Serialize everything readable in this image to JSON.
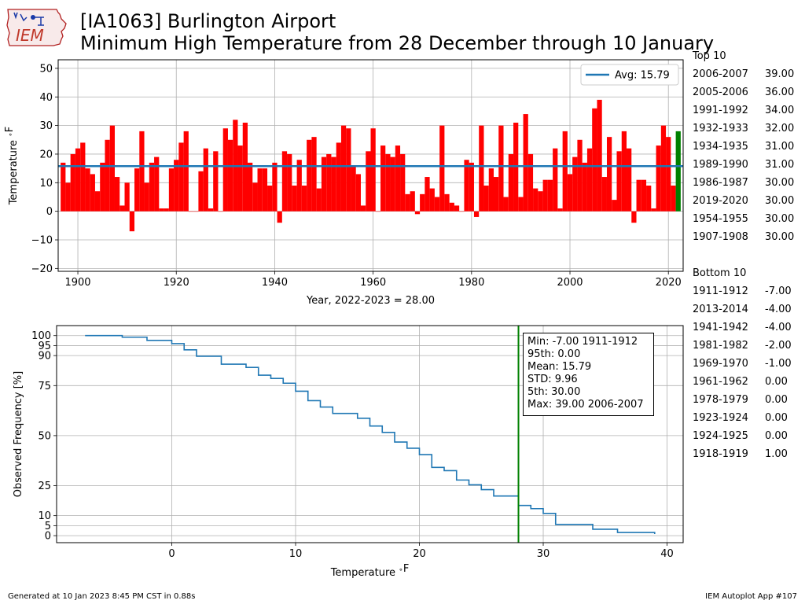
{
  "header": {
    "title_line1": "[IA1063] Burlington Airport",
    "title_line2": "Minimum High Temperature from 28 December through 10 January",
    "logo_text": "IEM"
  },
  "top10": {
    "heading": "Top 10",
    "rows": [
      {
        "season": "2006-2007",
        "value": "39.00"
      },
      {
        "season": "2005-2006",
        "value": "36.00"
      },
      {
        "season": "1991-1992",
        "value": "34.00"
      },
      {
        "season": "1932-1933",
        "value": "32.00"
      },
      {
        "season": "1934-1935",
        "value": "31.00"
      },
      {
        "season": "1989-1990",
        "value": "31.00"
      },
      {
        "season": "1986-1987",
        "value": "30.00"
      },
      {
        "season": "2019-2020",
        "value": "30.00"
      },
      {
        "season": "1954-1955",
        "value": "30.00"
      },
      {
        "season": "1907-1908",
        "value": "30.00"
      }
    ]
  },
  "bottom10": {
    "heading": "Bottom 10",
    "rows": [
      {
        "season": "1911-1912",
        "value": "-7.00"
      },
      {
        "season": "2013-2014",
        "value": "-4.00"
      },
      {
        "season": "1941-1942",
        "value": "-4.00"
      },
      {
        "season": "1981-1982",
        "value": "-2.00"
      },
      {
        "season": "1969-1970",
        "value": "-1.00"
      },
      {
        "season": "1961-1962",
        "value": "0.00"
      },
      {
        "season": "1978-1979",
        "value": "0.00"
      },
      {
        "season": "1923-1924",
        "value": "0.00"
      },
      {
        "season": "1924-1925",
        "value": "0.00"
      },
      {
        "season": "1918-1919",
        "value": "1.00"
      }
    ]
  },
  "footer": {
    "left": "Generated at 10 Jan 2023 8:45 PM CST in 0.88s",
    "right": "IEM Autoplot App #107"
  },
  "chart_data": [
    {
      "type": "bar",
      "xlabel": "Year, 2022-2023 = 28.00",
      "ylabel": "Temperature $^\\circ$F",
      "xlim": [
        1896,
        2023
      ],
      "ylim": [
        -21,
        53
      ],
      "xticks": [
        1900,
        1920,
        1940,
        1960,
        1980,
        2000,
        2020
      ],
      "yticks": [
        -20,
        -10,
        0,
        10,
        20,
        30,
        40,
        50
      ],
      "grid": true,
      "colors": {
        "bars": "#ff0000",
        "current": "#008000",
        "avg_line": "#1f77b4"
      },
      "legend": {
        "label": "Avg: 15.79",
        "placement": "top-right"
      },
      "average": 15.79,
      "x_start": 1897,
      "years": [
        1897,
        1898,
        1899,
        1900,
        1901,
        1902,
        1903,
        1904,
        1905,
        1906,
        1907,
        1908,
        1909,
        1910,
        1911,
        1912,
        1913,
        1914,
        1915,
        1916,
        1917,
        1918,
        1919,
        1920,
        1921,
        1922,
        1923,
        1924,
        1925,
        1926,
        1927,
        1928,
        1929,
        1930,
        1931,
        1932,
        1933,
        1934,
        1935,
        1936,
        1937,
        1938,
        1939,
        1940,
        1941,
        1942,
        1943,
        1944,
        1945,
        1946,
        1947,
        1948,
        1949,
        1950,
        1951,
        1952,
        1953,
        1954,
        1955,
        1956,
        1957,
        1958,
        1959,
        1960,
        1961,
        1962,
        1963,
        1964,
        1965,
        1966,
        1967,
        1968,
        1969,
        1970,
        1971,
        1972,
        1973,
        1974,
        1975,
        1976,
        1977,
        1978,
        1979,
        1980,
        1981,
        1982,
        1983,
        1984,
        1985,
        1986,
        1987,
        1988,
        1989,
        1990,
        1991,
        1992,
        1993,
        1994,
        1995,
        1996,
        1997,
        1998,
        1999,
        2000,
        2001,
        2002,
        2003,
        2004,
        2005,
        2006,
        2007,
        2008,
        2009,
        2010,
        2011,
        2012,
        2013,
        2014,
        2015,
        2016,
        2017,
        2018,
        2019,
        2020,
        2021,
        2022
      ],
      "values": [
        17,
        10,
        20,
        22,
        24,
        15,
        13,
        7,
        17,
        25,
        30,
        12,
        2,
        10,
        -7,
        15,
        28,
        10,
        17,
        19,
        1,
        1,
        15,
        18,
        24,
        28,
        0,
        0,
        14,
        22,
        1,
        21,
        0,
        29,
        25,
        32,
        23,
        31,
        17,
        10,
        15,
        15,
        9,
        17,
        -4,
        21,
        20,
        9,
        18,
        9,
        25,
        26,
        8,
        19,
        20,
        19,
        24,
        30,
        29,
        16,
        13,
        2,
        21,
        29,
        0,
        23,
        20,
        19,
        23,
        20,
        6,
        7,
        -1,
        6,
        12,
        8,
        5,
        30,
        6,
        3,
        2,
        0,
        18,
        17,
        -2,
        30,
        9,
        15,
        12,
        30,
        5,
        20,
        31,
        5,
        34,
        20,
        8,
        7,
        11,
        11,
        22,
        1,
        28,
        13,
        19,
        25,
        17,
        22,
        36,
        39,
        12,
        26,
        4,
        21,
        28,
        22,
        -4,
        11,
        11,
        9,
        1,
        23,
        30,
        26,
        9,
        28
      ]
    },
    {
      "type": "line",
      "xlabel": "Temperature $^\\circ$F",
      "ylabel": "Observed Frequency [%]",
      "xlim": [
        -9.3,
        41.3
      ],
      "ylim": [
        -3.5,
        105
      ],
      "xticks": [
        0,
        10,
        20,
        30,
        40
      ],
      "yticks": [
        0,
        5,
        10,
        25,
        50,
        75,
        90,
        95,
        100
      ],
      "grid": true,
      "colors": {
        "line": "#1f77b4",
        "current": "#008000"
      },
      "current_value": 28,
      "x": [
        -7,
        -4,
        -2,
        0,
        1,
        2,
        4,
        6,
        7,
        8,
        9,
        10,
        11,
        12,
        13,
        15,
        16,
        17,
        18,
        19,
        20,
        21,
        22,
        23,
        24,
        25,
        26,
        28,
        29,
        30,
        31,
        34,
        36,
        39
      ],
      "y": [
        100,
        99.2,
        97.6,
        96,
        92.9,
        89.7,
        85.7,
        84.1,
        80.2,
        78.6,
        76.2,
        72.2,
        67.5,
        64.3,
        61.1,
        58.7,
        54.8,
        51.6,
        46.8,
        43.7,
        40.5,
        34.1,
        32.5,
        27.8,
        25.4,
        23.0,
        19.8,
        15.1,
        13.5,
        11.1,
        5.6,
        3.2,
        1.6,
        0.8
      ],
      "stats": {
        "line1": "Min: -7.00 1911-1912",
        "line2": "95th: 0.00",
        "line3": "Mean: 15.79",
        "line4": "STD: 9.96",
        "line5": "5th: 30.00",
        "line6": "Max: 39.00 2006-2007"
      }
    }
  ]
}
